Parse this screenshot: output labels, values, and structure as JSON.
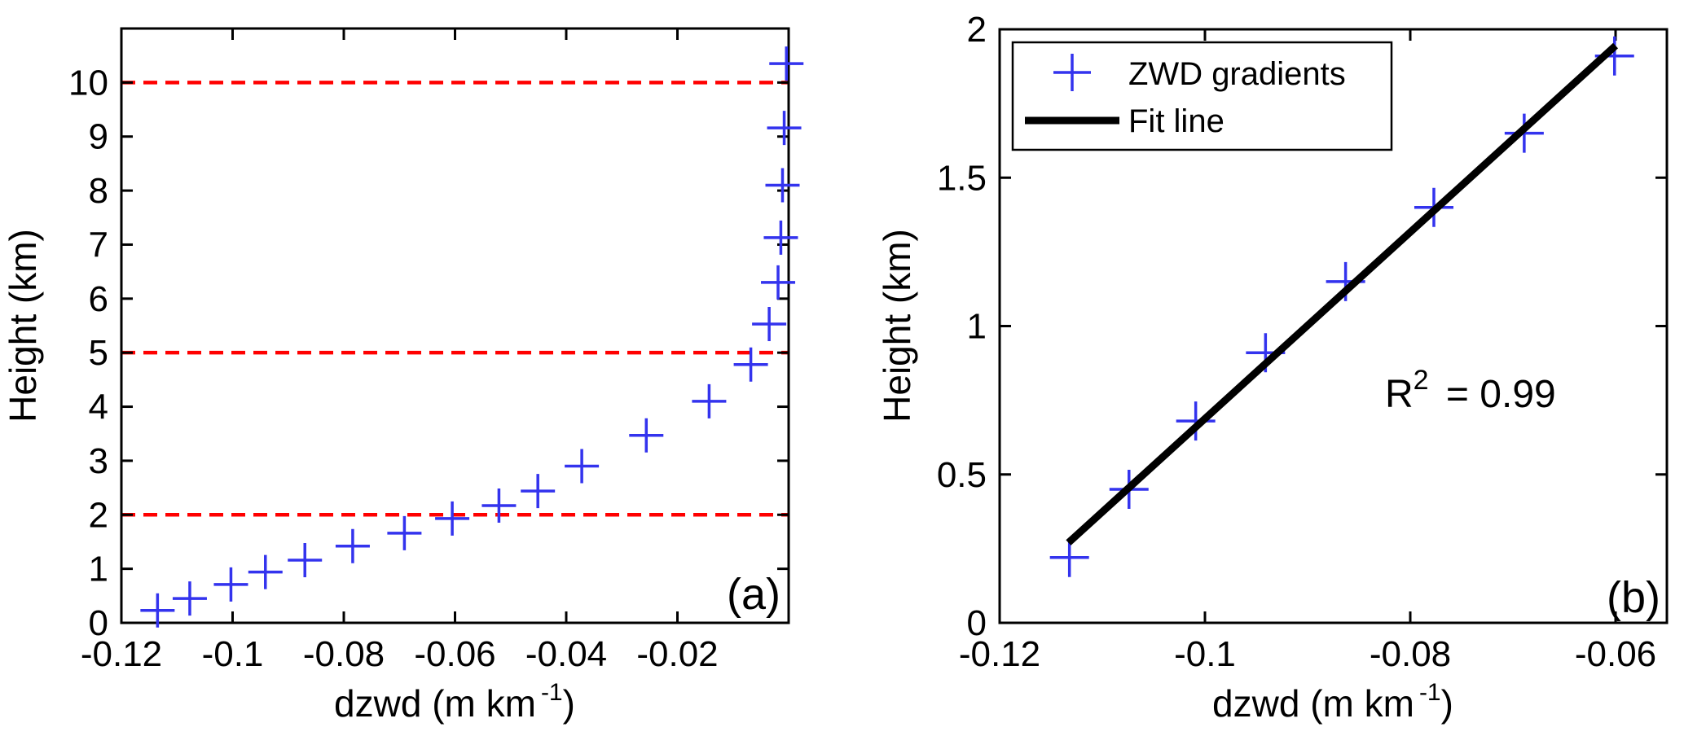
{
  "figure": {
    "background_color": "#ffffff",
    "text_color": "#000000",
    "marker_color": "#3333ee",
    "red_line_color": "#ff0000",
    "fit_line_color": "#000000"
  },
  "labels": {
    "xlabel_main": "dzwd (m km",
    "xlabel_sup": "-1",
    "xlabel_close": ")",
    "ylabel": "Height (km)",
    "panel_a": "(a)",
    "panel_b": "(b)",
    "legend_zwd": "ZWD gradients",
    "legend_fit": "Fit line",
    "r2_base": "R",
    "r2_sup": "2",
    "r2_rest": " = 0.99"
  },
  "chart_data": [
    {
      "panel": "a",
      "type": "scatter",
      "title": "",
      "xlabel": "dzwd (m km^-1)",
      "ylabel": "Height (km)",
      "xlim": [
        -0.12,
        0
      ],
      "ylim": [
        0,
        11
      ],
      "xticks": [
        -0.12,
        -0.1,
        -0.08,
        -0.06,
        -0.04,
        -0.02
      ],
      "xtick_labels": [
        "-0.12",
        "-0.1",
        "-0.08",
        "-0.06",
        "-0.04",
        "-0.02"
      ],
      "yticks": [
        0,
        1,
        2,
        3,
        4,
        5,
        6,
        7,
        8,
        9,
        10
      ],
      "ytick_labels": [
        "0",
        "1",
        "2",
        "3",
        "4",
        "5",
        "6",
        "7",
        "8",
        "9",
        "10"
      ],
      "grid": false,
      "legend": null,
      "panel_label": "(a)",
      "hlines": {
        "y": [
          2,
          5,
          10
        ],
        "color": "#ff0000",
        "style": "dashed"
      },
      "series": [
        {
          "name": "ZWD gradients",
          "type": "scatter",
          "marker": "+",
          "color": "#3333ee",
          "x": [
            -0.1135,
            -0.1077,
            -0.1003,
            -0.0941,
            -0.087,
            -0.0784,
            -0.0691,
            -0.0605,
            -0.0521,
            -0.0451,
            -0.0372,
            -0.0256,
            -0.0143,
            -0.0068,
            -0.0035,
            -0.0019,
            -0.0014,
            -0.0011,
            -0.0008,
            -0.0004
          ],
          "y": [
            0.23,
            0.45,
            0.71,
            0.94,
            1.16,
            1.42,
            1.66,
            1.93,
            2.17,
            2.44,
            2.9,
            3.47,
            4.1,
            4.78,
            5.53,
            6.3,
            7.13,
            8.1,
            9.16,
            10.35
          ]
        }
      ]
    },
    {
      "panel": "b",
      "type": "scatter",
      "title": "",
      "xlabel": "dzwd (m km^-1)",
      "ylabel": "Height (km)",
      "xlim": [
        -0.12,
        -0.055
      ],
      "ylim": [
        0,
        2
      ],
      "xticks": [
        -0.12,
        -0.1,
        -0.08,
        -0.06
      ],
      "xtick_labels": [
        "-0.12",
        "-0.1",
        "-0.08",
        "-0.06"
      ],
      "yticks": [
        0,
        0.5,
        1,
        1.5,
        2
      ],
      "ytick_labels": [
        "0",
        "0.5",
        "1",
        "1.5",
        "2"
      ],
      "grid": false,
      "legend": {
        "position": "top-left",
        "entries": [
          "ZWD gradients",
          "Fit line"
        ]
      },
      "panel_label": "(b)",
      "annotation": {
        "text": "R^2 = 0.99",
        "x": -0.073,
        "y": 0.81
      },
      "series": [
        {
          "name": "ZWD gradients",
          "type": "scatter",
          "marker": "+",
          "color": "#3333ee",
          "x": [
            -0.1132,
            -0.1074,
            -0.1009,
            -0.0941,
            -0.0863,
            -0.0777,
            -0.0689,
            -0.0601
          ],
          "y": [
            0.22,
            0.45,
            0.68,
            0.91,
            1.15,
            1.4,
            1.65,
            1.91
          ]
        },
        {
          "name": "Fit line",
          "type": "line",
          "color": "#000000",
          "width": 9,
          "x": [
            -0.1133,
            -0.06
          ],
          "y": [
            0.27,
            1.945
          ]
        }
      ]
    }
  ]
}
